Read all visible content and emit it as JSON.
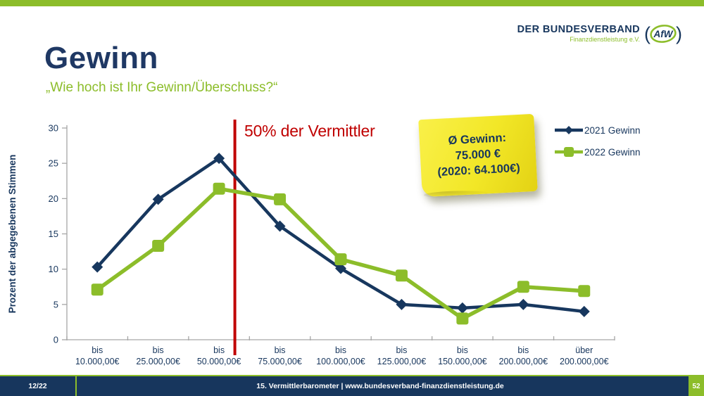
{
  "slide": {
    "title": "Gewinn",
    "subtitle": "„Wie hoch ist Ihr Gewinn/Überschuss?“"
  },
  "logo": {
    "name": "DER BUNDESVERBAND",
    "subname": "Finanzdienstleistung e.V.",
    "paren_open": "(",
    "emblem_text": "AfW",
    "paren_close": ")"
  },
  "sticky_note": {
    "lines": [
      "Ø Gewinn:",
      "75.000 €",
      "(2020: 64.100€)"
    ]
  },
  "chart_data": {
    "type": "line",
    "title": "",
    "xlabel": "",
    "ylabel": "Prozent der abgegebenen Stimmen",
    "ylim": [
      0,
      30
    ],
    "yticks": [
      0,
      5,
      10,
      15,
      20,
      25,
      30
    ],
    "grid": false,
    "legend_position": "top-right",
    "categories": [
      "bis 10.000,00€",
      "bis 25.000,00€",
      "bis 50.000,00€",
      "bis 75.000,00€",
      "bis 100.000,00€",
      "bis 125.000,00€",
      "bis 150.000,00€",
      "bis 200.000,00€",
      "über 200.000,00€"
    ],
    "series": [
      {
        "name": "2021 Gewinn",
        "color": "#17375E",
        "marker": "diamond",
        "values": [
          10.3,
          19.9,
          25.7,
          16.1,
          10.1,
          5.0,
          4.5,
          5.0,
          4.0
        ]
      },
      {
        "name": "2022 Gewinn",
        "color": "#8CBD2A",
        "marker": "square",
        "values": [
          7.1,
          13.3,
          21.4,
          19.9,
          11.4,
          9.1,
          3.0,
          7.5,
          6.9
        ]
      }
    ],
    "vline": {
      "label": "50% der Vermittler",
      "color": "#C00000",
      "x_after_category_index": 2,
      "x_fraction_into_next": 0.26
    }
  },
  "footer": {
    "left": "12/22",
    "center": "15. Vermittlerbarometer | www.bundesverband-finanzdienstleistung.de",
    "page": "52"
  },
  "colors": {
    "navy": "#17365D",
    "green": "#8CBD2A",
    "red": "#C00000",
    "sticky_yellow": "#F2E727"
  }
}
